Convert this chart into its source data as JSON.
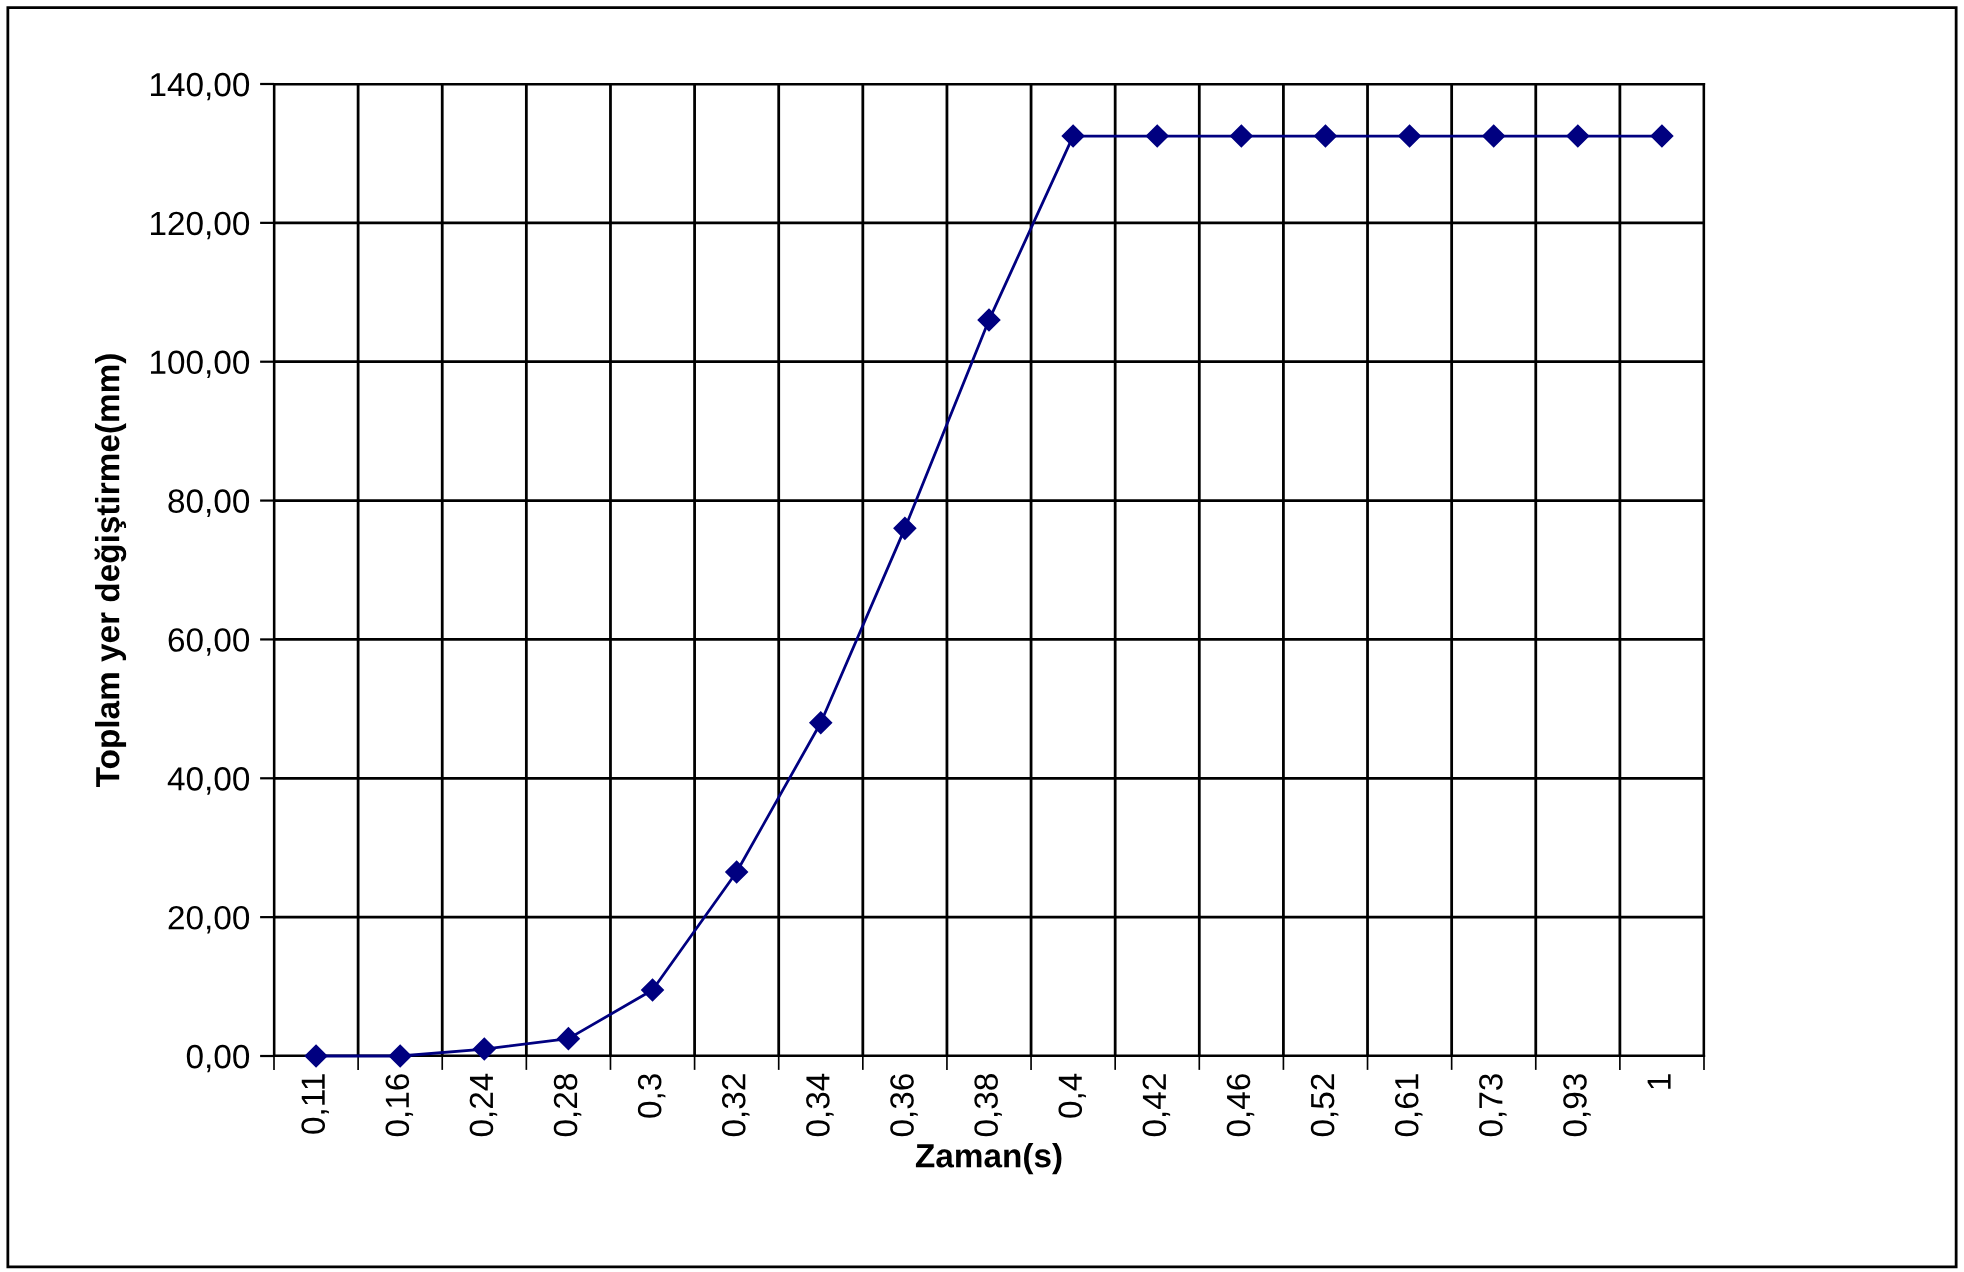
{
  "chart_data": {
    "type": "line",
    "xlabel": "Zaman(s)",
    "ylabel": "Toplam yer değiştirme(mm)",
    "categories": [
      "0,11",
      "0,16",
      "0,24",
      "0,28",
      "0,3",
      "0,32",
      "0,34",
      "0,36",
      "0,38",
      "0,4",
      "0,42",
      "0,46",
      "0,52",
      "0,61",
      "0,73",
      "0,93",
      "1"
    ],
    "series": [
      {
        "color": "#000080",
        "values": [
          0,
          0,
          1,
          2.5,
          9.5,
          26.5,
          48,
          76,
          106,
          132.5,
          132.5,
          132.5,
          132.5,
          132.5,
          132.5,
          132.5,
          132.5
        ]
      }
    ],
    "ylim": [
      0,
      140
    ],
    "yticks": [
      {
        "value": 0,
        "label": "0,00"
      },
      {
        "value": 20,
        "label": "20,00"
      },
      {
        "value": 40,
        "label": "40,00"
      },
      {
        "value": 60,
        "label": "60,00"
      },
      {
        "value": 80,
        "label": "80,00"
      },
      {
        "value": 100,
        "label": "100,00"
      },
      {
        "value": 120,
        "label": "120,00"
      },
      {
        "value": 140,
        "label": "140,00"
      }
    ],
    "grid": true,
    "marker": "diamond",
    "line_style": "solid",
    "legend": false
  }
}
